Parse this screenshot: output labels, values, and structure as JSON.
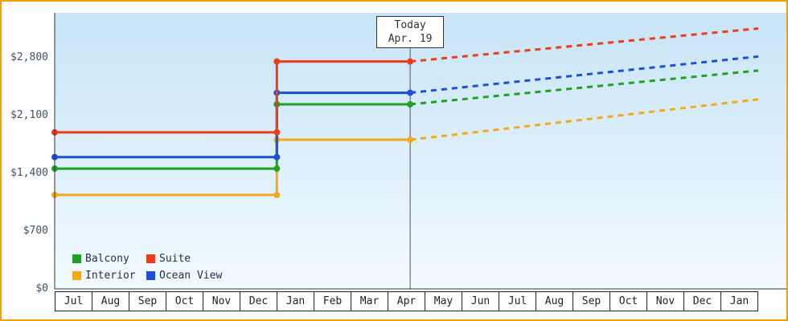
{
  "chart_data": {
    "type": "line",
    "title": "",
    "x_tick_labels": [
      "Jul",
      "Aug",
      "Sep",
      "Oct",
      "Nov",
      "Dec",
      "Jan",
      "Feb",
      "Mar",
      "Apr",
      "May",
      "Jun",
      "Jul",
      "Aug",
      "Sep",
      "Oct",
      "Nov",
      "Dec",
      "Jan"
    ],
    "y_ticks": [
      0,
      700,
      1400,
      2100,
      2800
    ],
    "y_tick_labels": [
      "$0",
      "$700",
      "$1,400",
      "$2,100",
      "$2,800"
    ],
    "ylim": [
      0,
      3350
    ],
    "grid": false,
    "legend_position": "bottom-left",
    "step_month_index": 6,
    "today_month_position": 9.6,
    "today_line1": "Today",
    "today_line2": "Apr. 19",
    "series": [
      {
        "name": "Interior",
        "color": "#f5a81c",
        "price_jul_dec": 1140,
        "price_jan_apr": 1810,
        "projected_end": 2300
      },
      {
        "name": "Balcony",
        "color": "#21a121",
        "price_jul_dec": 1460,
        "price_jan_apr": 2240,
        "projected_end": 2650
      },
      {
        "name": "Ocean View",
        "color": "#1c50d8",
        "price_jul_dec": 1600,
        "price_jan_apr": 2380,
        "projected_end": 2820
      },
      {
        "name": "Suite",
        "color": "#ee3b1a",
        "price_jul_dec": 1900,
        "price_jan_apr": 2760,
        "projected_end": 3160
      }
    ],
    "legend": [
      {
        "label": "Balcony",
        "color": "#21a121"
      },
      {
        "label": "Suite",
        "color": "#ee3b1a"
      },
      {
        "label": "Interior",
        "color": "#f5a81c"
      },
      {
        "label": "Ocean View",
        "color": "#1c50d8"
      }
    ]
  },
  "colors": {
    "frame_border": "#f5a000",
    "plot_bg_top": "#c8e4f6",
    "plot_bg_bottom": "#f1faff",
    "axis": "#333333",
    "today_line": "#555555"
  }
}
